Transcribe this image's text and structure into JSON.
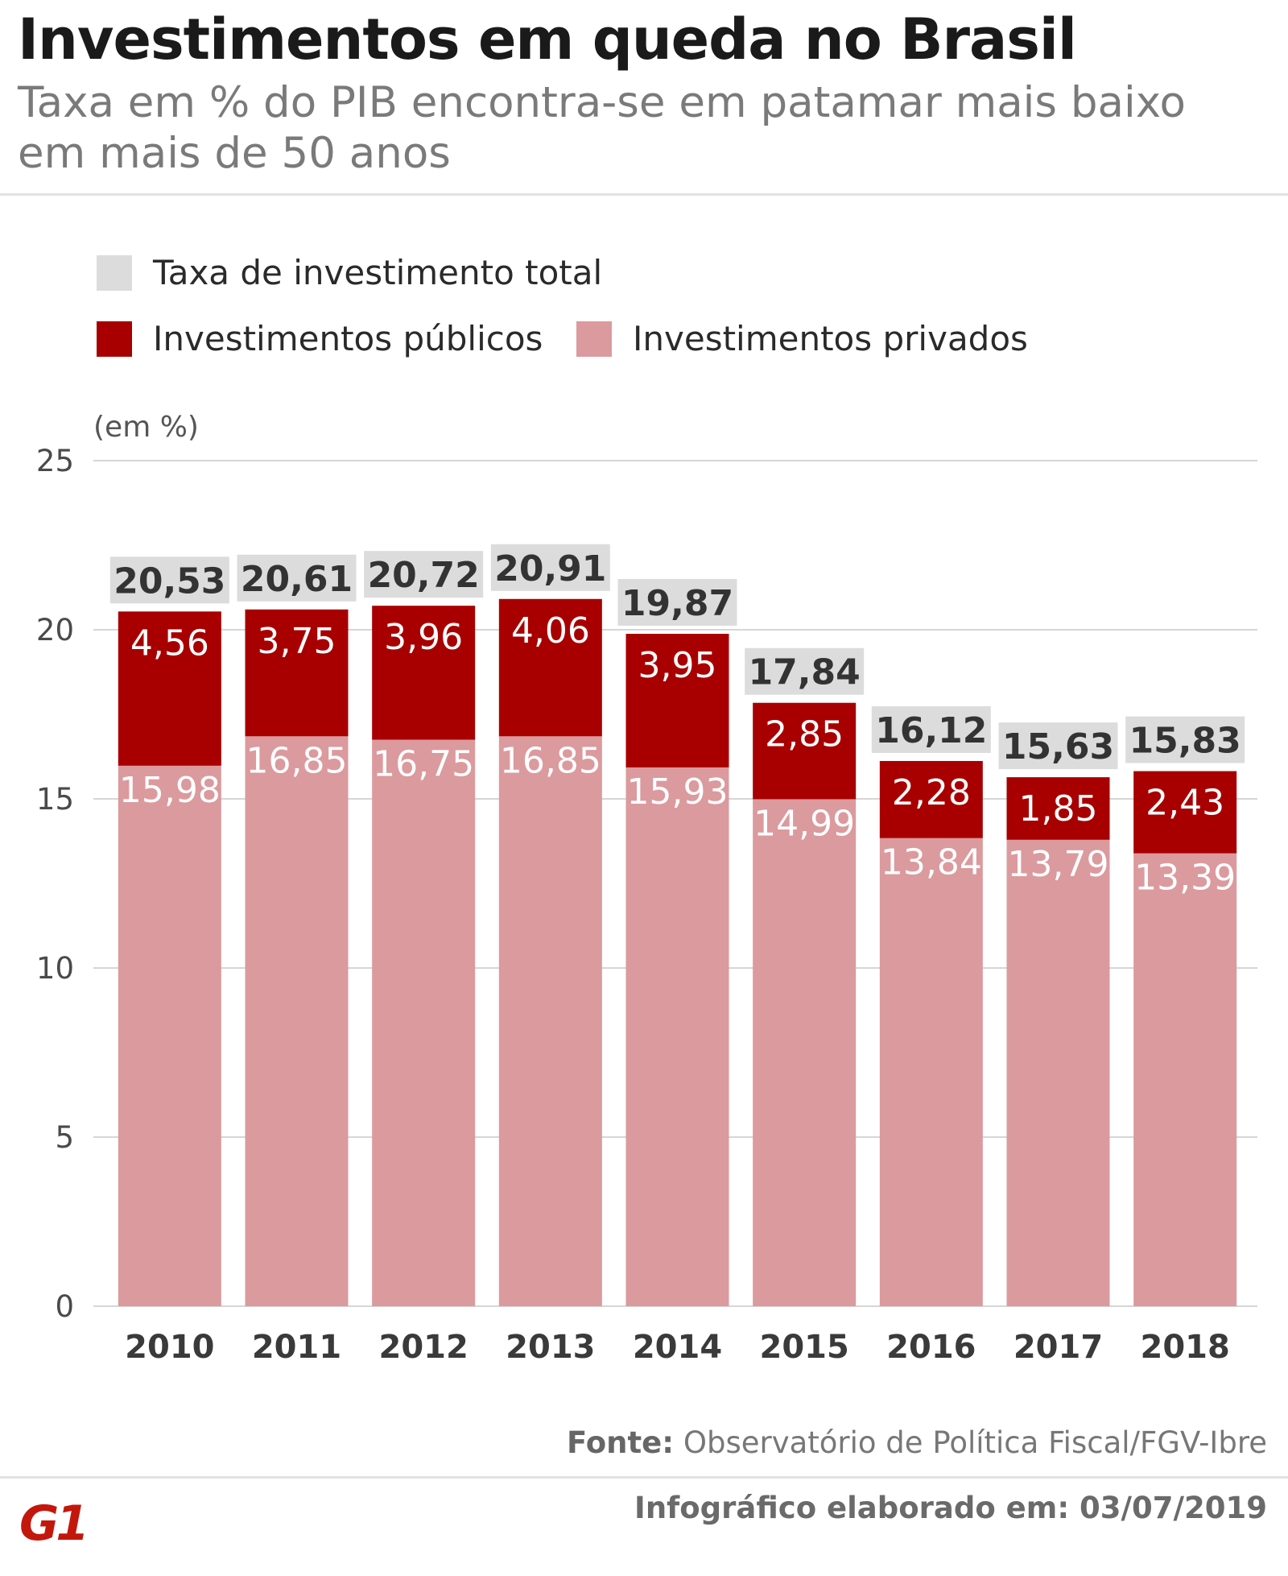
{
  "title": "Investimentos em queda no Brasil",
  "subtitle": "Taxa em % do PIB encontra-se em patamar mais baixo em mais de 50 anos",
  "legend": {
    "total": "Taxa de investimento total",
    "public": "Investimentos públicos",
    "private": "Investimentos privados"
  },
  "colors": {
    "total": "#dcdcdc",
    "public": "#a80000",
    "private": "#db9a9e",
    "grid": "#d6d6d6"
  },
  "source": {
    "prefix": "Fonte:",
    "text": "Observatório de Política Fiscal/FGV-Ibre"
  },
  "credit": "Infográfico elaborado em: 03/07/2019",
  "logo": {
    "text": "G1",
    "color": "#c4170c"
  },
  "chart_data": {
    "type": "bar",
    "stacked": true,
    "ylabel": "(em %)",
    "ylim": [
      0,
      25
    ],
    "yticks": [
      0,
      5,
      10,
      15,
      20,
      25
    ],
    "grid": true,
    "legend_position": "top-left",
    "categories": [
      "2010",
      "2011",
      "2012",
      "2013",
      "2014",
      "2015",
      "2016",
      "2017",
      "2018"
    ],
    "series": [
      {
        "name": "Investimentos privados",
        "values": [
          15.98,
          16.85,
          16.75,
          16.85,
          15.93,
          14.99,
          13.84,
          13.79,
          13.39
        ],
        "labels": [
          "15,98",
          "16,85",
          "16,75",
          "16,85",
          "15,93",
          "14,99",
          "13,84",
          "13,79",
          "13,39"
        ]
      },
      {
        "name": "Investimentos públicos",
        "values": [
          4.56,
          3.75,
          3.96,
          4.06,
          3.95,
          2.85,
          2.28,
          1.85,
          2.43
        ],
        "labels": [
          "4,56",
          "3,75",
          "3,96",
          "4,06",
          "3,95",
          "2,85",
          "2,28",
          "1,85",
          "2,43"
        ]
      }
    ],
    "totals": {
      "name": "Taxa de investimento total",
      "values": [
        20.53,
        20.61,
        20.72,
        20.91,
        19.87,
        17.84,
        16.12,
        15.63,
        15.83
      ],
      "labels": [
        "20,53",
        "20,61",
        "20,72",
        "20,91",
        "19,87",
        "17,84",
        "16,12",
        "15,63",
        "15,83"
      ]
    }
  }
}
